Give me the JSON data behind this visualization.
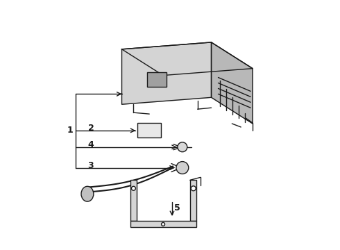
{
  "background_color": "#ffffff",
  "line_color": "#1a1a1a",
  "label_1": "1",
  "label_2": "2",
  "label_3": "3",
  "label_4": "4",
  "label_5": "5",
  "fig_width": 4.9,
  "fig_height": 3.6,
  "dpi": 100
}
